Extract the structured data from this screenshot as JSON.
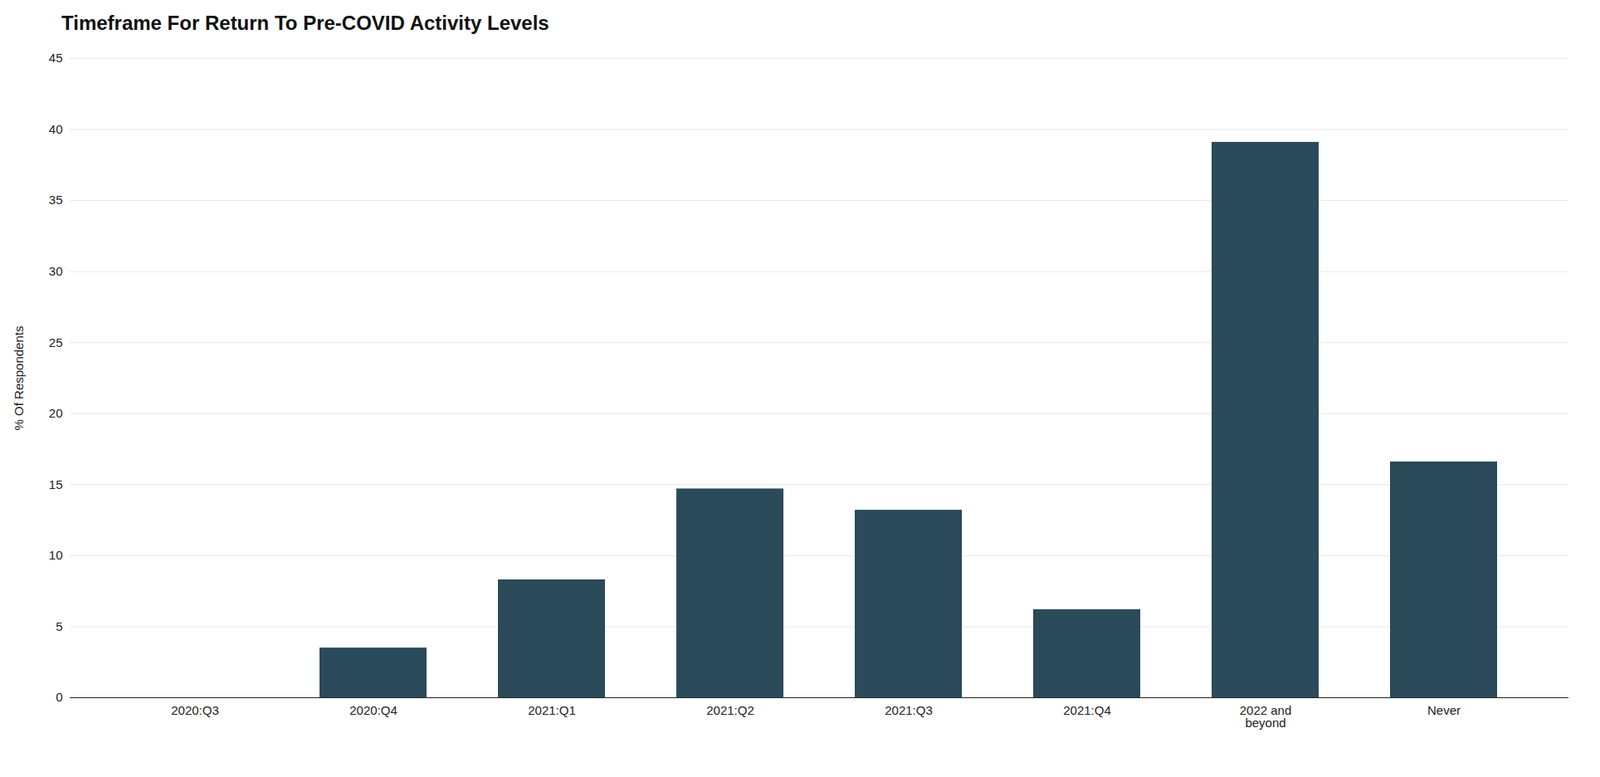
{
  "chart_data": {
    "type": "bar",
    "title": "Timeframe For Return To Pre-COVID Activity Levels",
    "categories": [
      "2020:Q3",
      "2020:Q4",
      "2021:Q1",
      "2021:Q2",
      "2021:Q3",
      "2021:Q4",
      "2022 and\nbeyond",
      "Never"
    ],
    "values": [
      0.0,
      3.5,
      8.3,
      14.7,
      13.2,
      6.2,
      39.1,
      16.6
    ],
    "ylabel": "% Of Respondents",
    "color": "#2b4a5a",
    "ylim": [
      0,
      45
    ],
    "yticks": [
      0,
      5,
      10,
      15,
      20,
      25,
      30,
      35,
      40,
      45
    ],
    "grid": true
  }
}
